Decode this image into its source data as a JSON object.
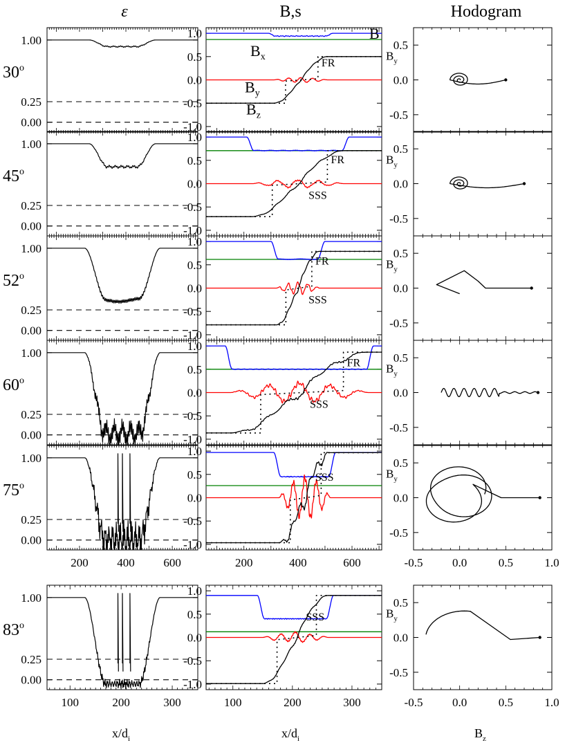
{
  "figure": {
    "col_titles": [
      "ε",
      "B,s",
      "Hodogram"
    ],
    "x_label_main": "x/d",
    "x_label_sub": "i",
    "hodo_xlabel_main": "B",
    "hodo_xlabel_sub": "z",
    "hodo_ylabel_main": "B",
    "hodo_ylabel_sub": "y",
    "colors": {
      "B": "#0000ff",
      "Bx": "#008000",
      "By": "#ff0000",
      "Bz": "#000000"
    }
  },
  "chart_data": {
    "type": "line",
    "rows": [
      {
        "angle": "30",
        "group": 0,
        "eps": {
          "baseline": 1.0,
          "dip_min": 0.92,
          "jagged": 0.0,
          "spike": false
        },
        "bs": {
          "Bmag": 1.0,
          "Bmag_min": 0.94,
          "Bx": 0.866,
          "Bz_start": -0.5,
          "Bz_end": 0.5,
          "osc": 0.05,
          "ramp_a": 310,
          "ramp_b": 510,
          "Bx_label": "B",
          "Bx_sub": "x",
          "B_label": "B",
          "By_label": "B",
          "By_sub": "y",
          "Bz_label": "B",
          "Bz_sub": "z",
          "labels": [
            "FR"
          ]
        },
        "hodo": {
          "kind": "spiral",
          "end_z": 0.5
        }
      },
      {
        "angle": "45",
        "group": 0,
        "eps": {
          "baseline": 1.0,
          "dip_min": 0.72,
          "jagged": 0.02,
          "spike": false
        },
        "bs": {
          "Bmag": 1.0,
          "Bmag_min": 0.71,
          "Bx": 0.707,
          "Bz_start": -0.707,
          "Bz_end": 0.707,
          "osc": 0.08,
          "ramp_a": 230,
          "ramp_b": 570,
          "labels": [
            "FR",
            "SSS"
          ]
        },
        "hodo": {
          "kind": "spiral",
          "end_z": 0.7
        }
      },
      {
        "angle": "52",
        "group": 0,
        "eps": {
          "baseline": 1.0,
          "dip_min": 0.37,
          "jagged": 0.04,
          "spike": false
        },
        "bs": {
          "Bmag": 1.0,
          "Bmag_min": 0.62,
          "Bx": 0.616,
          "Bz_start": -0.788,
          "Bz_end": 0.788,
          "osc": 0.12,
          "ramp_a": 320,
          "ramp_b": 480,
          "labels": [
            "FR",
            "SSS"
          ]
        },
        "hodo": {
          "kind": "kink",
          "end_z": 0.78
        }
      },
      {
        "angle": "60",
        "group": 0,
        "eps": {
          "baseline": 1.0,
          "dip_min": 0.02,
          "jagged": 0.18,
          "spike": false
        },
        "bs": {
          "Bmag": 1.0,
          "Bmag_min": 0.5,
          "Bx": 0.5,
          "Bz_start": -0.866,
          "Bz_end": 0.866,
          "osc": 0.2,
          "ramp_a": 150,
          "ramp_b": 660,
          "labels": [
            "FR",
            "SSS"
          ]
        },
        "hodo": {
          "kind": "squiggle",
          "end_z": 0.85
        }
      },
      {
        "angle": "75",
        "group": 0,
        "eps": {
          "baseline": 1.0,
          "dip_min": 0.0,
          "jagged": 0.25,
          "spike": true
        },
        "bs": {
          "Bmag": 0.97,
          "Bmag_min": 0.45,
          "Bx": 0.259,
          "Bz_start": -0.966,
          "Bz_end": 0.966,
          "osc": 0.5,
          "ramp_a": 330,
          "ramp_b": 520,
          "labels": [
            "SSS"
          ]
        },
        "hodo": {
          "kind": "loops",
          "end_z": 0.87
        }
      },
      {
        "angle": "83",
        "group": 1,
        "eps": {
          "baseline": 1.0,
          "dip_min": -0.05,
          "jagged": 0.06,
          "spike": true
        },
        "bs": {
          "Bmag": 0.9,
          "Bmag_min": 0.4,
          "Bx": 0.122,
          "Bz_start": -0.99,
          "Bz_end": 0.9,
          "osc": 0.1,
          "ramp_a": 150,
          "ramp_b": 260,
          "labels": [
            "SSS"
          ]
        },
        "hodo": {
          "kind": "arc",
          "end_z": 0.87
        }
      }
    ],
    "x_groups": [
      {
        "xlim": [
          60,
          710
        ],
        "ticks": [
          200,
          400,
          600
        ]
      },
      {
        "xlim": [
          55,
          350
        ],
        "ticks": [
          100,
          200,
          300
        ]
      }
    ],
    "eps_ylim": [
      -0.12,
      1.15
    ],
    "eps_ticks": [
      0.0,
      0.25,
      1.0
    ],
    "eps_tick_labels": [
      "0.00",
      "0.25",
      "1.00"
    ],
    "eps_dashed": [
      0.0,
      0.25
    ],
    "bs_ylim": [
      -1.12,
      1.12
    ],
    "bs_ticks": [
      -1.0,
      -0.5,
      0.0,
      0.5,
      1.0
    ],
    "bs_tick_labels": [
      "-1.0",
      "-0.5",
      "0.0",
      "0.5",
      "1.0"
    ],
    "hodo_xlim": [
      -0.5,
      1.0
    ],
    "hodo_xticks": [
      -0.5,
      0.0,
      0.5,
      1.0
    ],
    "hodo_xtick_labels": [
      "-0.5",
      "0.0",
      "0.5",
      "1.0"
    ],
    "hodo_ylim": [
      -0.75,
      0.75
    ],
    "hodo_yticks": [
      -0.5,
      0.0,
      0.5
    ],
    "hodo_ytick_labels": [
      "-0.5",
      "0.0",
      "0.5"
    ]
  }
}
